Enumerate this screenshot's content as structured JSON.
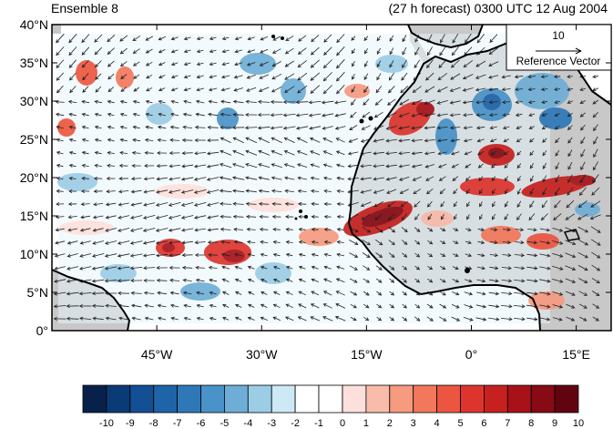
{
  "titles": {
    "left": "Ensemble 8",
    "right": "(27 h forecast) 0300 UTC 12 Aug 2004"
  },
  "map": {
    "lat_range": [
      0,
      40
    ],
    "lon_range": [
      -60,
      20
    ],
    "y_ticks": [
      {
        "value": 40,
        "label": "40°N"
      },
      {
        "value": 35,
        "label": "35°N"
      },
      {
        "value": 30,
        "label": "30°N"
      },
      {
        "value": 25,
        "label": "25°N"
      },
      {
        "value": 20,
        "label": "20°N"
      },
      {
        "value": 15,
        "label": "15°N"
      },
      {
        "value": 10,
        "label": "10°N"
      },
      {
        "value": 5,
        "label": "5°N"
      },
      {
        "value": 0,
        "label": "0°"
      }
    ],
    "x_ticks": [
      {
        "value": -45,
        "label": "45°W"
      },
      {
        "value": -30,
        "label": "30°W"
      },
      {
        "value": -15,
        "label": "15°W"
      },
      {
        "value": 0,
        "label": "0°"
      },
      {
        "value": 15,
        "label": "15°E"
      }
    ],
    "land_color": "#c8c8c8",
    "coast_color": "#000000"
  },
  "reference_vector": {
    "magnitude": "10",
    "label": "Reference Vector"
  },
  "colorbar": {
    "labels": [
      "-10",
      "-9",
      "-8",
      "-7",
      "-6",
      "-5",
      "-4",
      "-3",
      "-2",
      "-1",
      "0",
      "1",
      "2",
      "3",
      "4",
      "5",
      "6",
      "7",
      "8",
      "9",
      "10"
    ],
    "colors": [
      "#08214a",
      "#0b3b76",
      "#134f94",
      "#1f63a8",
      "#2f78b8",
      "#4a93c8",
      "#6eaed6",
      "#9ccde6",
      "#cde9f5",
      "#ffffff",
      "#ffffff",
      "#fde0dc",
      "#f9bcab",
      "#f69a80",
      "#f2785c",
      "#ec5640",
      "#dd352e",
      "#c6211f",
      "#a71219",
      "#860b14",
      "#620410"
    ]
  }
}
